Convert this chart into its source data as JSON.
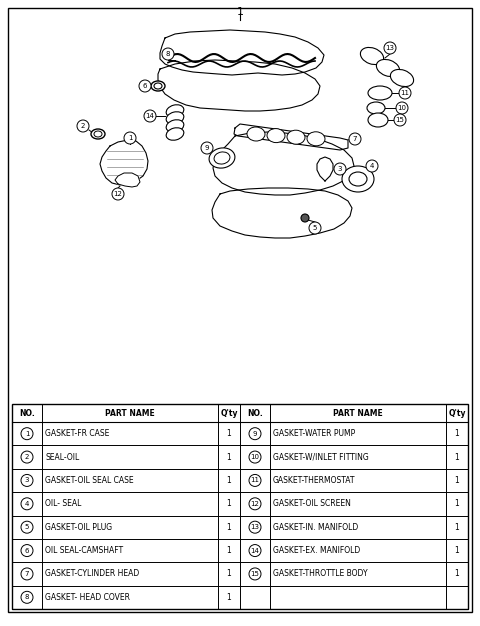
{
  "title_number": "1",
  "bg_color": "#ffffff",
  "border_color": "#000000",
  "parts_left": [
    {
      "no": 1,
      "name": "GASKET-FR CASE",
      "qty": "1"
    },
    {
      "no": 2,
      "name": "SEAL-OIL",
      "qty": "1"
    },
    {
      "no": 3,
      "name": "GASKET-OIL SEAL CASE",
      "qty": "1"
    },
    {
      "no": 4,
      "name": "OIL- SEAL",
      "qty": "1"
    },
    {
      "no": 5,
      "name": "GASKET-OIL PLUG",
      "qty": "1"
    },
    {
      "no": 6,
      "name": "OIL SEAL-CAMSHAFT",
      "qty": "1"
    },
    {
      "no": 7,
      "name": "GASKET-CYLINDER HEAD",
      "qty": "1"
    },
    {
      "no": 8,
      "name": "GASKET- HEAD COVER",
      "qty": "1"
    }
  ],
  "parts_right": [
    {
      "no": 9,
      "name": "GASKET-WATER PUMP",
      "qty": "1"
    },
    {
      "no": 10,
      "name": "GASKET-W/INLET FITTING",
      "qty": "1"
    },
    {
      "no": 11,
      "name": "GASKET-THERMOSTAT",
      "qty": "1"
    },
    {
      "no": 12,
      "name": "GASKET-OIL SCREEN",
      "qty": "1"
    },
    {
      "no": 13,
      "name": "GASKET-IN. MANIFOLD",
      "qty": "1"
    },
    {
      "no": 14,
      "name": "GASKET-EX. MANIFOLD",
      "qty": "1"
    },
    {
      "no": 15,
      "name": "GASKET-THROTTLE BODY",
      "qty": "1"
    }
  ],
  "font_size_table": 5.5,
  "font_size_title": 8,
  "line_color": "#000000"
}
